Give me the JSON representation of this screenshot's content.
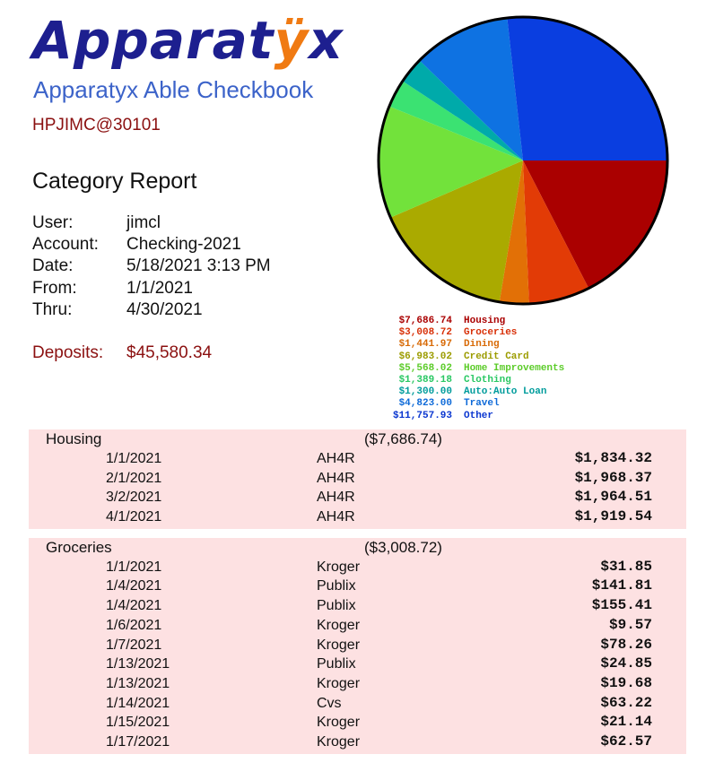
{
  "brand": {
    "logo_main": "Apparat",
    "logo_accent": "ÿ",
    "logo_tail": "x",
    "app_title": "Apparatyx Able Checkbook",
    "account_id": "HPJIMC@30101"
  },
  "report": {
    "title": "Category Report",
    "meta": [
      {
        "label": "User:",
        "value": "jimcl"
      },
      {
        "label": "Account:",
        "value": "Checking-2021"
      },
      {
        "label": "Date:",
        "value": "5/18/2021 3:13 PM"
      },
      {
        "label": "From:",
        "value": "1/1/2021"
      },
      {
        "label": "Thru:",
        "value": "4/30/2021"
      }
    ],
    "deposits_label": "Deposits:",
    "deposits_value": "$45,580.34"
  },
  "pie": {
    "slices": [
      {
        "name": "Housing",
        "amount_text": "$7,686.74",
        "value": 7686.74,
        "color": "#aa0000",
        "text_color": "#aa0000"
      },
      {
        "name": "Groceries",
        "amount_text": "$3,008.72",
        "value": 3008.72,
        "color": "#e23b06",
        "text_color": "#d83008"
      },
      {
        "name": "Dining",
        "amount_text": "$1,441.97",
        "value": 1441.97,
        "color": "#e27006",
        "text_color": "#d86a06"
      },
      {
        "name": "Credit Card",
        "amount_text": "$6,983.02",
        "value": 6983.02,
        "color": "#aaaa00",
        "text_color": "#9c9c00"
      },
      {
        "name": "Home Improvements",
        "amount_text": "$5,568.02",
        "value": 5568.02,
        "color": "#72e23b",
        "text_color": "#5ccc2a"
      },
      {
        "name": "Clothing",
        "amount_text": "$1,389.18",
        "value": 1389.18,
        "color": "#3be272",
        "text_color": "#2ac864"
      },
      {
        "name": "Auto:Auto Loan",
        "amount_text": "$1,300.00",
        "value": 1300.0,
        "color": "#00aaaa",
        "text_color": "#009c9c"
      },
      {
        "name": "Travel",
        "amount_text": "$4,823.00",
        "value": 4823.0,
        "color": "#0e72e2",
        "text_color": "#0e6ad8"
      },
      {
        "name": "Other",
        "amount_text": "$11,757.93",
        "value": 11757.93,
        "color": "#0a3ee0",
        "text_color": "#0a36d0"
      }
    ]
  },
  "categories": [
    {
      "name": "Housing",
      "total": "($7,686.74)",
      "transactions": [
        {
          "date": "1/1/2021",
          "payee": "AH4R",
          "amount": "$1,834.32"
        },
        {
          "date": "2/1/2021",
          "payee": "AH4R",
          "amount": "$1,968.37"
        },
        {
          "date": "3/2/2021",
          "payee": "AH4R",
          "amount": "$1,964.51"
        },
        {
          "date": "4/1/2021",
          "payee": "AH4R",
          "amount": "$1,919.54"
        }
      ]
    },
    {
      "name": "Groceries",
      "total": "($3,008.72)",
      "transactions": [
        {
          "date": "1/1/2021",
          "payee": "Kroger",
          "amount": "$31.85"
        },
        {
          "date": "1/4/2021",
          "payee": "Publix",
          "amount": "$141.81"
        },
        {
          "date": "1/4/2021",
          "payee": "Publix",
          "amount": "$155.41"
        },
        {
          "date": "1/6/2021",
          "payee": "Kroger",
          "amount": "$9.57"
        },
        {
          "date": "1/7/2021",
          "payee": "Kroger",
          "amount": "$78.26"
        },
        {
          "date": "1/13/2021",
          "payee": "Publix",
          "amount": "$24.85"
        },
        {
          "date": "1/13/2021",
          "payee": "Kroger",
          "amount": "$19.68"
        },
        {
          "date": "1/14/2021",
          "payee": "Cvs",
          "amount": "$63.22"
        },
        {
          "date": "1/15/2021",
          "payee": "Kroger",
          "amount": "$21.14"
        },
        {
          "date": "1/17/2021",
          "payee": "Kroger",
          "amount": "$62.57"
        }
      ]
    }
  ]
}
